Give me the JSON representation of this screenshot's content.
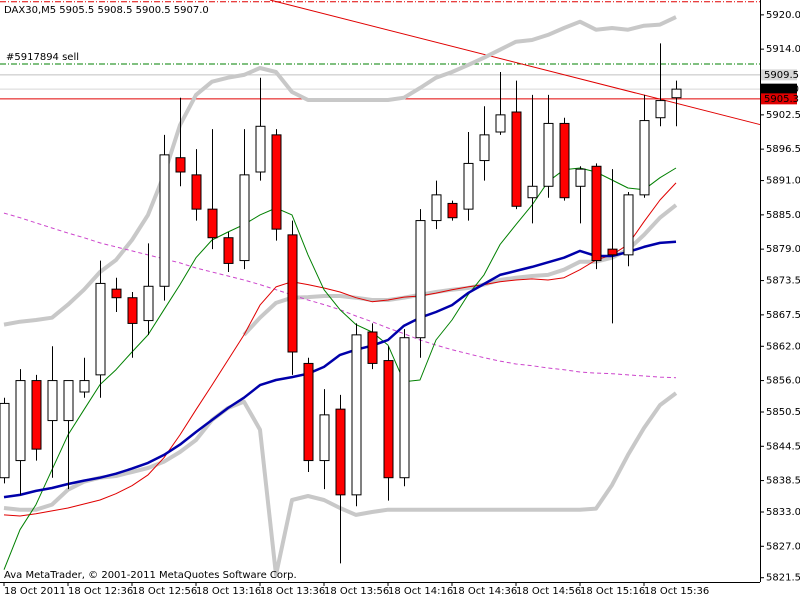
{
  "chart_data": {
    "type": "candlestick",
    "title": "DAX30,M5  5905.5 5908.5 5900.5 5907.0",
    "footer": "Ava MetaTrader, © 2001-2011 MetaQuotes Software Corp.",
    "categories": [
      "18 Oct 2011",
      null,
      null,
      null,
      "18 Oct 12:36",
      null,
      null,
      null,
      "18 Oct 12:56",
      null,
      null,
      null,
      "18 Oct 13:16",
      null,
      null,
      null,
      "18 Oct 13:36",
      null,
      null,
      null,
      "18 Oct 13:56",
      null,
      null,
      null,
      "18 Oct 14:16",
      null,
      null,
      null,
      "18 Oct 14:36",
      null,
      null,
      null,
      "18 Oct 14:56",
      null,
      null,
      null,
      "18 Oct 15:16",
      null,
      null,
      null,
      "18 Oct 15:36",
      null,
      null
    ],
    "open": [
      5839,
      5842,
      5856,
      5849,
      5849,
      5854,
      5857,
      5872,
      5870.5,
      5866.5,
      5872.5,
      5895,
      5892,
      5886,
      5881,
      5877,
      5892.5,
      5899,
      5881.5,
      5859,
      5842,
      5851,
      5836,
      5864.5,
      5859.5,
      5839,
      5863.5,
      5884,
      5887,
      5886,
      5894.5,
      5899.5,
      5903,
      5888,
      5890,
      5901,
      5890,
      5893.5,
      5879,
      5878,
      5888.5,
      5902,
      5905.5
    ],
    "high": [
      5853,
      5858,
      5857,
      5862,
      5856,
      5860,
      5877,
      5874,
      5871.5,
      5880,
      5899,
      5905.5,
      5896.5,
      5900,
      5882,
      5900,
      5909,
      5900,
      5884,
      5860,
      5854.5,
      5853.5,
      5866,
      5866,
      5862,
      5865,
      5886,
      5891,
      5887.5,
      5899.5,
      5904,
      5910,
      5908.5,
      5906,
      5906,
      5902,
      5893.5,
      5894,
      5893,
      5889,
      5906,
      5915,
      5908.5
    ],
    "low": [
      5838,
      5836,
      5842,
      5839,
      5837,
      5853,
      5853,
      5868,
      5860,
      5864,
      5870,
      5890,
      5884,
      5879,
      5875,
      5875.5,
      5891,
      5880.5,
      5857,
      5840,
      5837,
      5824,
      5834,
      5858,
      5835,
      5837.5,
      5860,
      5882.5,
      5884,
      5884,
      5891,
      5899,
      5886,
      5883.5,
      5888,
      5887.5,
      5883.5,
      5875.5,
      5866,
      5876,
      5888,
      5900.5,
      5900.5
    ],
    "close": [
      5852,
      5856,
      5844,
      5856,
      5856,
      5856,
      5873,
      5870.5,
      5866,
      5872.5,
      5895.5,
      5892.5,
      5886,
      5881,
      5876.5,
      5892,
      5900.5,
      5882.5,
      5861,
      5842,
      5850,
      5836,
      5864,
      5859,
      5839,
      5863.5,
      5884,
      5888.5,
      5884.5,
      5894,
      5899,
      5902.5,
      5886.5,
      5890,
      5901,
      5888,
      5893,
      5877,
      5878,
      5888.5,
      5901.5,
      5905,
      5907
    ],
    "up_color": "#ffffff",
    "down_color": "#ff0000",
    "indicators": [
      {
        "color": "#c8c8c8",
        "width": 4,
        "dash": null,
        "values": [
          5865.8,
          5866.3,
          5866.6,
          5867.0,
          5869.3,
          5871.9,
          5875.0,
          5877.1,
          5880.6,
          5885.0,
          5892.0,
          5900.7,
          5906.0,
          5908.3,
          5909.0,
          5909.5,
          5910.7,
          5910.0,
          5906.5,
          5905.1,
          5905.1,
          5905.1,
          5905.1,
          5905.1,
          5905.1,
          5905.5,
          5907.2,
          5909.0,
          5910.0,
          5911.2,
          5912.5,
          5913.9,
          5915.3,
          5915.6,
          5916.5,
          5917.7,
          5918.8,
          5917.4,
          5917.7,
          5917.4,
          5918.1,
          5918.3,
          5919.6
        ]
      },
      {
        "color": "#c8c8c8",
        "width": 4,
        "dash": null,
        "values": [
          null,
          null,
          null,
          null,
          null,
          null,
          null,
          null,
          null,
          null,
          null,
          null,
          null,
          null,
          null,
          5864.0,
          5867.0,
          5869.6,
          5870.5,
          5870.6,
          5870.8,
          5870.8,
          5870.5,
          5870.1,
          5870.1,
          5870.5,
          5871.0,
          5871.5,
          5871.9,
          5872.2,
          5872.8,
          5873.6,
          5874.0,
          5874.3,
          5874.5,
          5875.4,
          5876.8,
          5876.8,
          5877.5,
          5878.9,
          5881.5,
          5884.5,
          5886.7
        ]
      },
      {
        "color": "#c8c8c8",
        "width": 4,
        "dash": null,
        "values": [
          5833.7,
          5833.4,
          5833.4,
          5834.3,
          5836.9,
          5838.3,
          5839.0,
          5839.3,
          5840.0,
          5840.7,
          5841.8,
          5843.5,
          5845.6,
          5849.1,
          5851.2,
          5852.3,
          5847.4,
          5822.0,
          5835.1,
          5835.8,
          5835.1,
          5833.7,
          5832.5,
          5833.0,
          5833.4,
          5833.4,
          5833.4,
          5833.4,
          5833.4,
          5833.4,
          5833.4,
          5833.4,
          5833.4,
          5833.4,
          5833.4,
          5833.4,
          5833.4,
          5833.6,
          5837.7,
          5843.0,
          5847.7,
          5851.7,
          5853.8
        ]
      },
      {
        "color": "#cc44cc",
        "width": 1,
        "dash": "4 3",
        "values": [
          5885.3,
          5884.5,
          5883.6,
          5882.7,
          5881.8,
          5881.0,
          5880.1,
          5879.4,
          5878.7,
          5878.0,
          5877.3,
          5876.6,
          5875.7,
          5875.0,
          5874.3,
          5873.6,
          5872.8,
          5871.9,
          5871.0,
          5870.1,
          5869.3,
          5868.4,
          5867.3,
          5866.3,
          5865.2,
          5864.2,
          5863.1,
          5862.2,
          5861.4,
          5860.7,
          5860.0,
          5859.4,
          5858.9,
          5858.6,
          5858.2,
          5857.9,
          5857.5,
          5857.3,
          5857.2,
          5857.0,
          5856.8,
          5856.6,
          5856.5
        ]
      },
      {
        "color": "#e00000",
        "width": 1,
        "dash": null,
        "values": [
          5832.5,
          5832.3,
          5832.7,
          5833.2,
          5833.7,
          5834.4,
          5835.1,
          5836.2,
          5837.6,
          5839.5,
          5842.5,
          5846.5,
          5850.9,
          5855.2,
          5859.6,
          5864.0,
          5869.2,
          5872.4,
          5873.3,
          5872.8,
          5872.2,
          5871.5,
          5870.5,
          5869.8,
          5870.1,
          5870.6,
          5870.8,
          5871.3,
          5871.9,
          5872.4,
          5872.8,
          5873.3,
          5873.6,
          5873.8,
          5873.6,
          5874.0,
          5875.4,
          5877.1,
          5878.0,
          5879.8,
          5883.8,
          5887.6,
          5890.6
        ]
      },
      {
        "color": "#008000",
        "width": 1,
        "dash": null,
        "values": [
          5822.9,
          5829.9,
          5834.3,
          5840.4,
          5846.5,
          5850.9,
          5855.3,
          5857.9,
          5861.0,
          5864.0,
          5868.4,
          5872.8,
          5877.5,
          5880.6,
          5882.0,
          5883.3,
          5885.0,
          5886.2,
          5885.0,
          5878.0,
          5871.9,
          5868.4,
          5865.8,
          5864.5,
          5862.2,
          5855.8,
          5856.1,
          5863.1,
          5866.6,
          5871.0,
          5874.5,
          5879.8,
          5883.3,
          5886.7,
          5890.8,
          5892.9,
          5893.2,
          5892.5,
          5891.1,
          5889.7,
          5889.4,
          5891.5,
          5893.2
        ]
      },
      {
        "color": "#0000aa",
        "width": 2.5,
        "dash": null,
        "values": [
          5835.6,
          5836.0,
          5836.7,
          5837.2,
          5837.9,
          5838.5,
          5839.0,
          5839.7,
          5840.6,
          5841.6,
          5843.0,
          5844.8,
          5847.0,
          5849.1,
          5851.2,
          5853.0,
          5855.2,
          5856.1,
          5856.6,
          5857.2,
          5858.4,
          5860.5,
          5861.4,
          5862.1,
          5863.1,
          5865.6,
          5867.0,
          5868.0,
          5869.2,
          5871.3,
          5872.9,
          5874.5,
          5875.2,
          5875.9,
          5876.7,
          5877.5,
          5878.7,
          5877.8,
          5877.8,
          5878.5,
          5879.4,
          5880.1,
          5880.3
        ]
      }
    ],
    "trendline": {
      "start": 5922.6,
      "end": 5900.8,
      "color": "#e00000"
    },
    "levels": [
      {
        "value": 5922.3,
        "color": "#e00000",
        "dash": "6 2 1 2"
      },
      {
        "value": 5911.4,
        "color": "#008000",
        "dash": "6 2 1 2",
        "label": "#5917894 sell"
      },
      {
        "value": 5909.5,
        "color": "#c0c0c0",
        "dash": null,
        "tag": "5909.5",
        "tag_color": "#d8d8d8",
        "tag_text_color": "#ffffff"
      },
      {
        "value": 5907,
        "color": "#d8d8d8",
        "dash": null,
        "tag": "5907.0",
        "tag_color": "#000000",
        "tag_text_color": "#ffffff"
      },
      {
        "value": 5905.3,
        "color": "#e00000",
        "dash": null,
        "tag": "5905.3",
        "tag_color": "#e00000",
        "tag_text_color": "#ffffff"
      }
    ],
    "ylim": [
      5821.1,
      5922.6
    ],
    "yticks": [
      {
        "value": 5920,
        "label": "5920.0"
      },
      {
        "value": 5914,
        "label": "5914.0"
      },
      5902.5,
      5896.5,
      {
        "value": 5891,
        "label": "5891.0"
      },
      {
        "value": 5885,
        "label": "5885.0"
      },
      {
        "value": 5879,
        "label": "5879.0"
      },
      5873.5,
      5867.5,
      {
        "value": 5862,
        "label": "5862.0"
      },
      {
        "value": 5856,
        "label": "5856.0"
      },
      5850.5,
      5844.5,
      5838.5,
      {
        "value": 5833,
        "label": "5833.0"
      },
      {
        "value": 5827,
        "label": "5827.0"
      },
      5821.5
    ]
  }
}
